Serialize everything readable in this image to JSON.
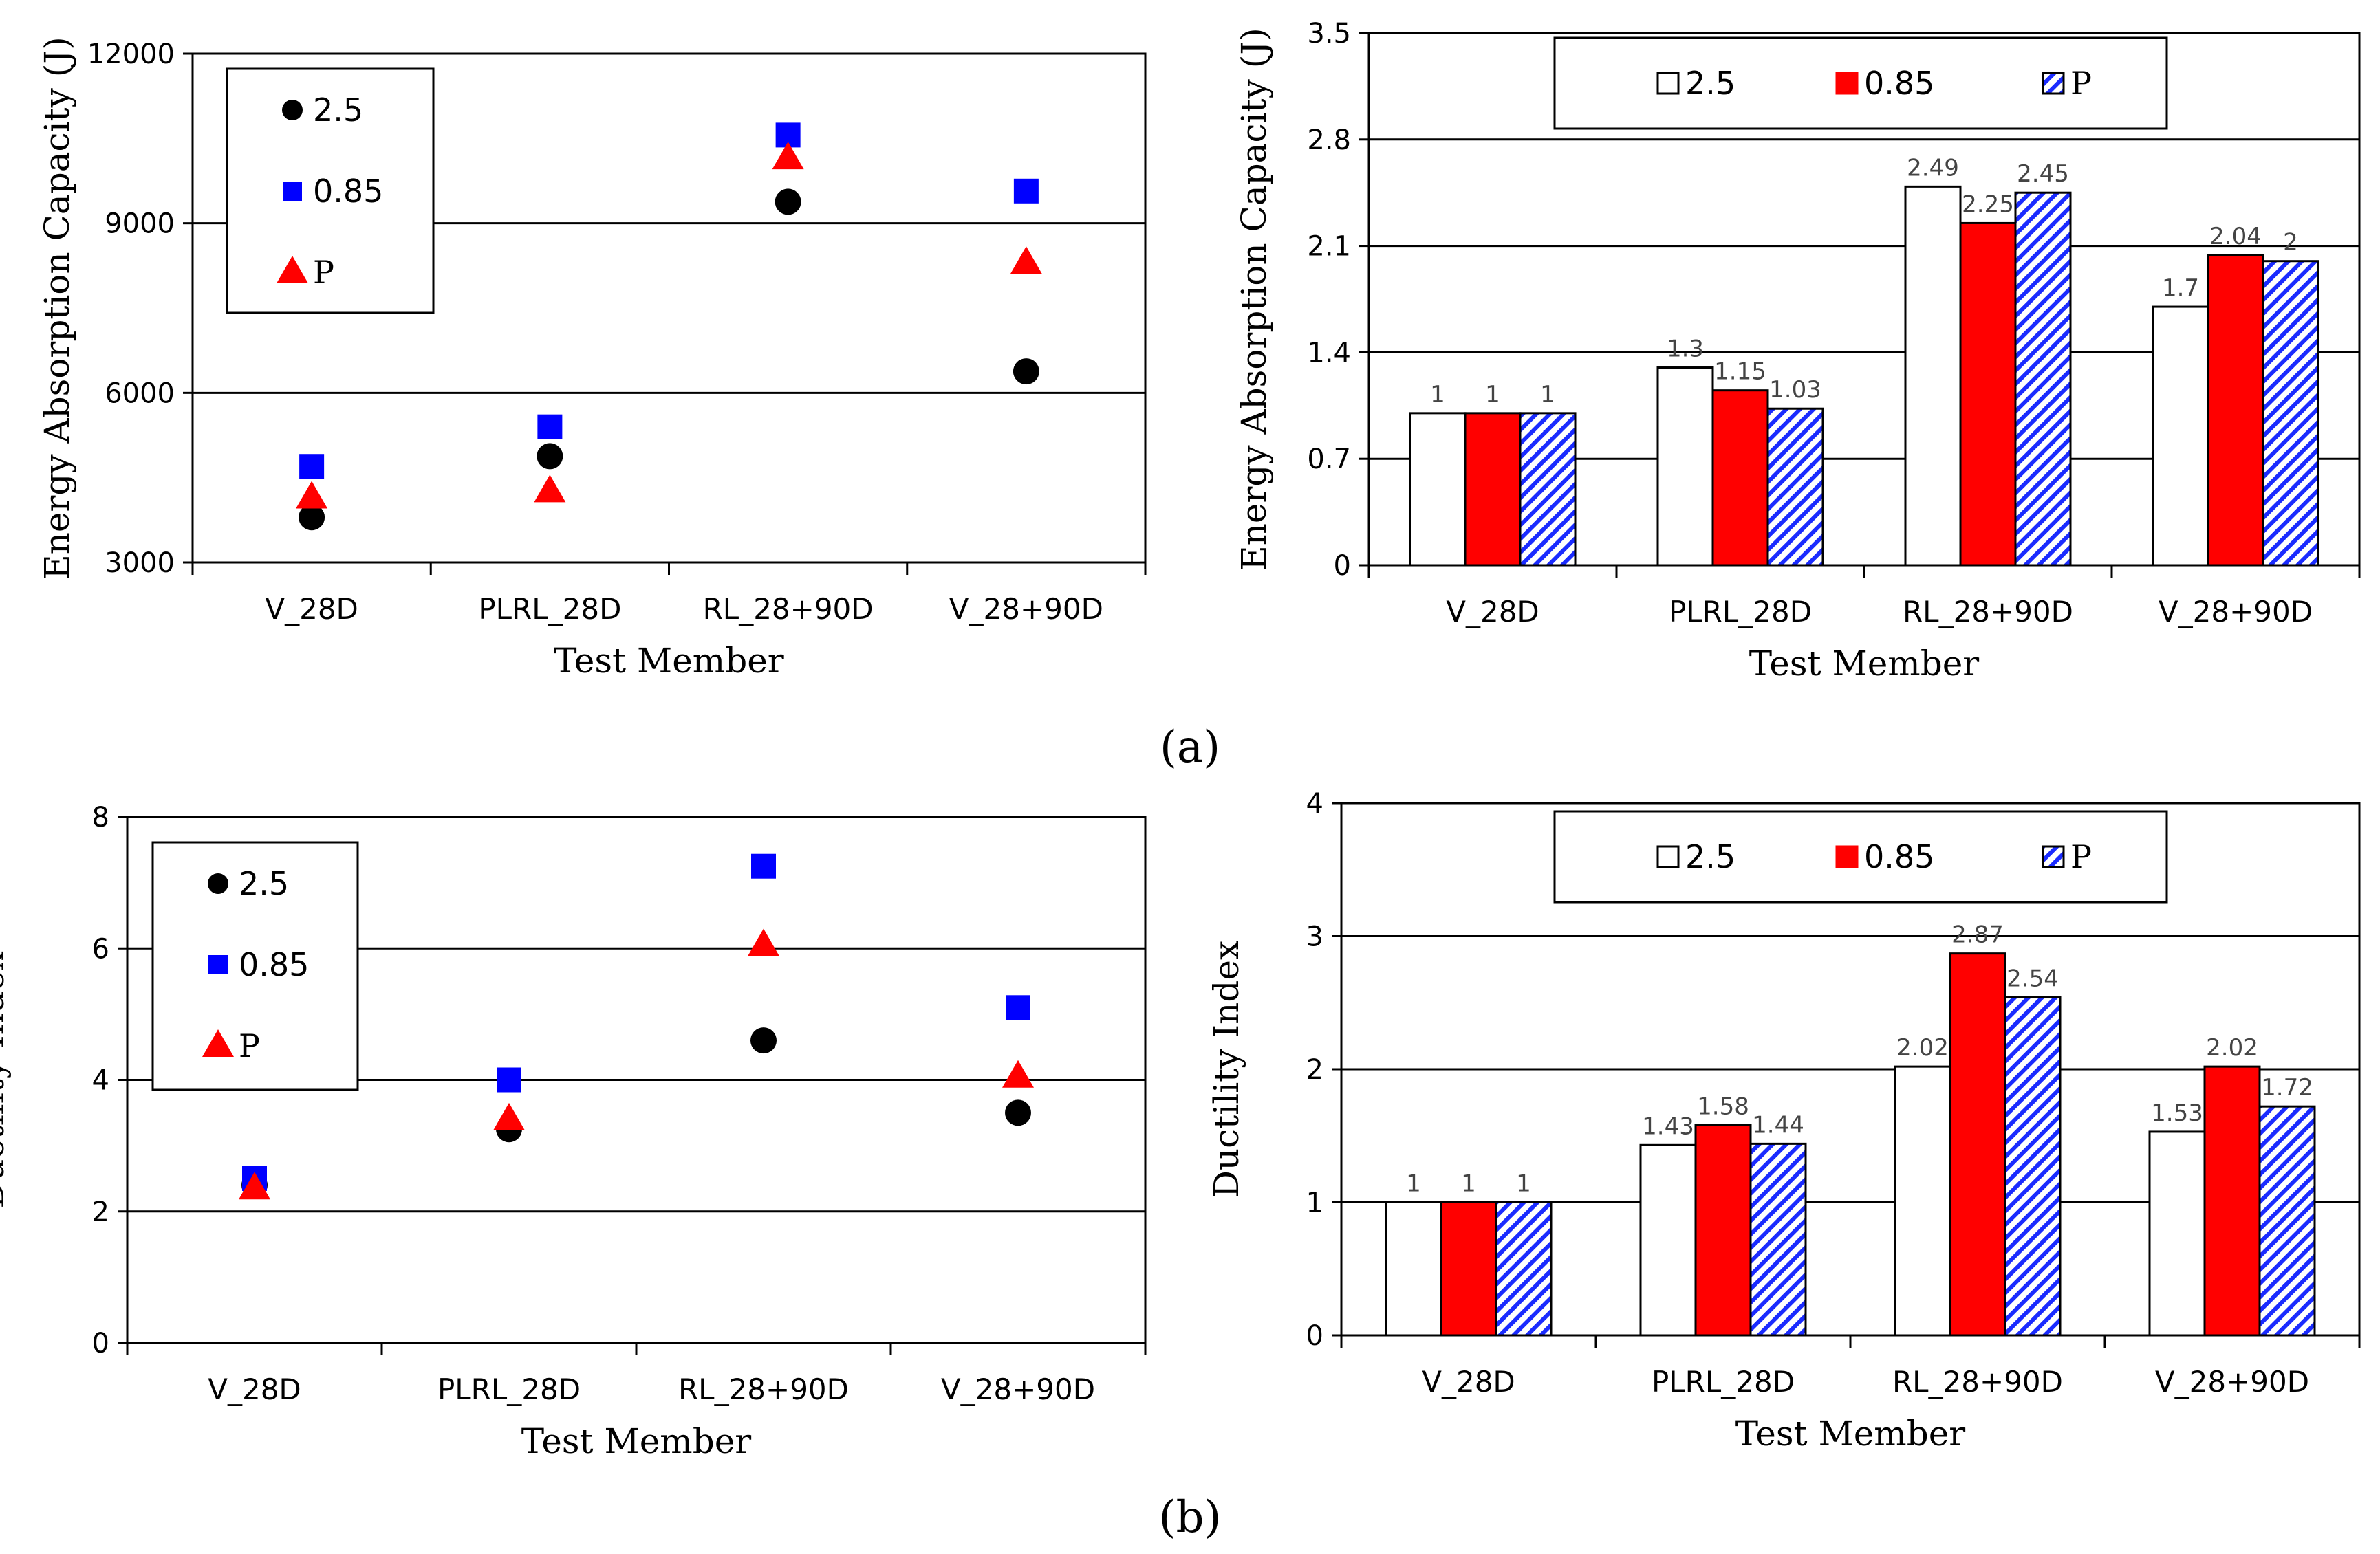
{
  "panel_labels": [
    "(a)",
    "(b)"
  ],
  "legend_labels": [
    "2.5",
    "0.85",
    "P"
  ],
  "chart_data": [
    {
      "id": "a-left",
      "type": "scatter",
      "xlabel": "Test Member",
      "ylabel": "Energy Absorption Capacity (J)",
      "categories": [
        "V_28D",
        "PLRL_28D",
        "RL_28+90D",
        "V_28+90D"
      ],
      "ylim": [
        3000,
        12000
      ],
      "yticks": [
        3000,
        6000,
        9000,
        12000
      ],
      "grid": "horizontal",
      "legend": "top-left",
      "series": [
        {
          "name": "2.5",
          "marker": "circle",
          "color": "#000000",
          "values": [
            3800,
            4880,
            9380,
            6380
          ]
        },
        {
          "name": "0.85",
          "marker": "square",
          "color": "#0000ff",
          "values": [
            4700,
            5400,
            10560,
            9570
          ]
        },
        {
          "name": "P",
          "marker": "triangle",
          "color": "#ff0000",
          "values": [
            4150,
            4260,
            10150,
            8300
          ]
        }
      ]
    },
    {
      "id": "a-right",
      "type": "bar",
      "xlabel": "Test Member",
      "ylabel": "Energy Absorption Capacity (J)",
      "categories": [
        "V_28D",
        "PLRL_28D",
        "RL_28+90D",
        "V_28+90D"
      ],
      "ylim": [
        0,
        3.5
      ],
      "yticks": [
        "0",
        "0.7",
        "1.4",
        "2.1",
        "2.8",
        "3.5"
      ],
      "grid": "horizontal",
      "legend": "top",
      "series": [
        {
          "name": "2.5",
          "fill": "white",
          "values": [
            1,
            1.3,
            2.49,
            1.7
          ],
          "labels": [
            "1",
            "1.3",
            "2.49",
            "1.7"
          ]
        },
        {
          "name": "0.85",
          "fill": "red",
          "values": [
            1,
            1.15,
            2.25,
            2.04
          ],
          "labels": [
            "1",
            "1.15",
            "2.25",
            "2.04"
          ]
        },
        {
          "name": "P",
          "fill": "blue-hatched",
          "values": [
            1,
            1.03,
            2.45,
            2
          ],
          "labels": [
            "1",
            "1.03",
            "2.45",
            "2"
          ]
        }
      ]
    },
    {
      "id": "b-left",
      "type": "scatter",
      "xlabel": "Test Member",
      "ylabel": "Ductility Index",
      "categories": [
        "V_28D",
        "PLRL_28D",
        "RL_28+90D",
        "V_28+90D"
      ],
      "ylim": [
        0,
        8
      ],
      "yticks": [
        0,
        2,
        4,
        6,
        8
      ],
      "grid": "horizontal",
      "legend": "top-left",
      "series": [
        {
          "name": "2.5",
          "marker": "circle",
          "color": "#000000",
          "values": [
            2.4,
            3.25,
            4.6,
            3.5
          ]
        },
        {
          "name": "0.85",
          "marker": "square",
          "color": "#0000ff",
          "values": [
            2.5,
            4.0,
            7.25,
            5.1
          ]
        },
        {
          "name": "P",
          "marker": "triangle",
          "color": "#ff0000",
          "values": [
            2.35,
            3.4,
            6.05,
            4.05
          ]
        }
      ]
    },
    {
      "id": "b-right",
      "type": "bar",
      "xlabel": "Test Member",
      "ylabel": "Ductility Index",
      "categories": [
        "V_28D",
        "PLRL_28D",
        "RL_28+90D",
        "V_28+90D"
      ],
      "ylim": [
        0,
        4
      ],
      "yticks": [
        "0",
        "1",
        "2",
        "3",
        "4"
      ],
      "grid": "horizontal",
      "legend": "top",
      "series": [
        {
          "name": "2.5",
          "fill": "white",
          "values": [
            1,
            1.43,
            2.02,
            1.53
          ],
          "labels": [
            "1",
            "1.43",
            "2.02",
            "1.53"
          ]
        },
        {
          "name": "0.85",
          "fill": "red",
          "values": [
            1,
            1.58,
            2.87,
            2.02
          ],
          "labels": [
            "1",
            "1.58",
            "2.87",
            "2.02"
          ]
        },
        {
          "name": "P",
          "fill": "blue-hatched",
          "values": [
            1,
            1.44,
            2.54,
            1.72
          ],
          "labels": [
            "1",
            "1.44",
            "2.54",
            "1.72"
          ]
        }
      ]
    }
  ]
}
